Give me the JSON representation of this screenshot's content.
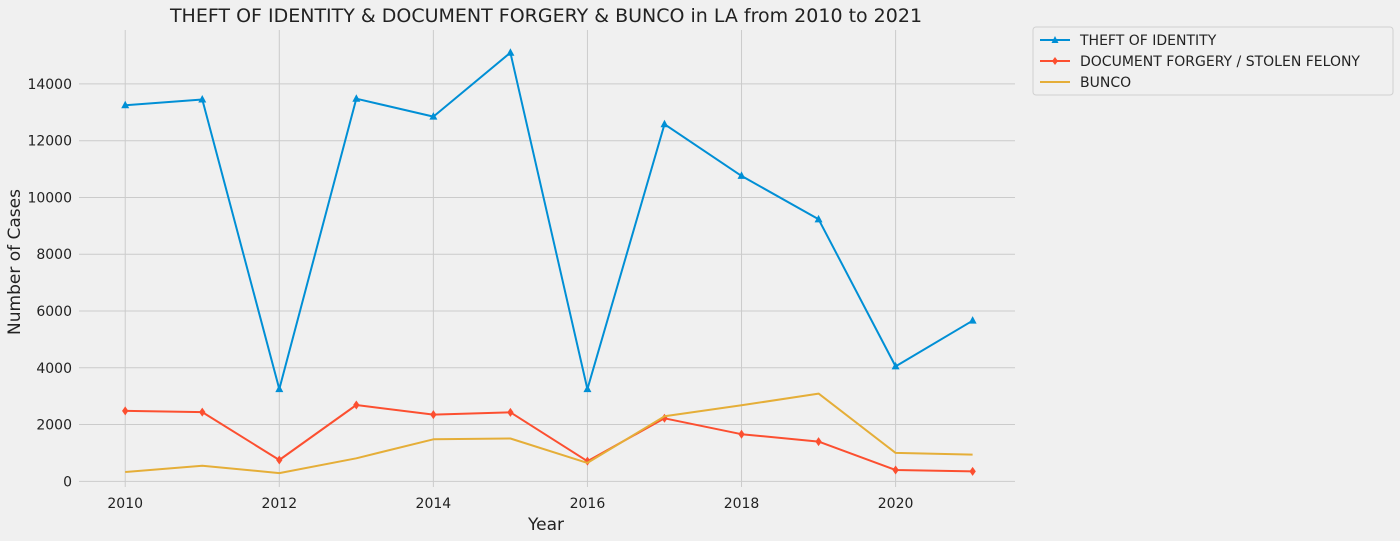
{
  "chart_data": {
    "type": "line",
    "title": "THEFT OF IDENTITY & DOCUMENT FORGERY & BUNCO in LA from 2010 to 2021",
    "xlabel": "Year",
    "ylabel": "Number of Cases",
    "x": [
      2010,
      2011,
      2012,
      2013,
      2014,
      2015,
      2016,
      2017,
      2018,
      2019,
      2020,
      2021
    ],
    "xticks": [
      "2010",
      "2012",
      "2014",
      "2016",
      "2018",
      "2020"
    ],
    "yticks": [
      "0",
      "2000",
      "4000",
      "6000",
      "8000",
      "10000",
      "12000",
      "14000"
    ],
    "xlim": [
      2009.4,
      2021.55
    ],
    "ylim": [
      -200,
      15900
    ],
    "grid": true,
    "legend_position": "outside-top-right",
    "series": [
      {
        "name": "THEFT OF IDENTITY",
        "color": "#008fd5",
        "marker": "triangle",
        "values": [
          13250,
          13450,
          3250,
          13480,
          12850,
          15100,
          3250,
          12580,
          10760,
          9230,
          4050,
          5660
        ]
      },
      {
        "name": "DOCUMENT FORGERY / STOLEN FELONY",
        "color": "#fc4f30",
        "marker": "diamond",
        "values": [
          2480,
          2440,
          750,
          2690,
          2350,
          2430,
          710,
          2220,
          1660,
          1400,
          400,
          350
        ]
      },
      {
        "name": "BUNCO",
        "color": "#e5ae38",
        "marker": "none",
        "values": [
          330,
          550,
          290,
          810,
          1480,
          1510,
          650,
          2290,
          2680,
          3090,
          1000,
          940
        ]
      }
    ]
  }
}
